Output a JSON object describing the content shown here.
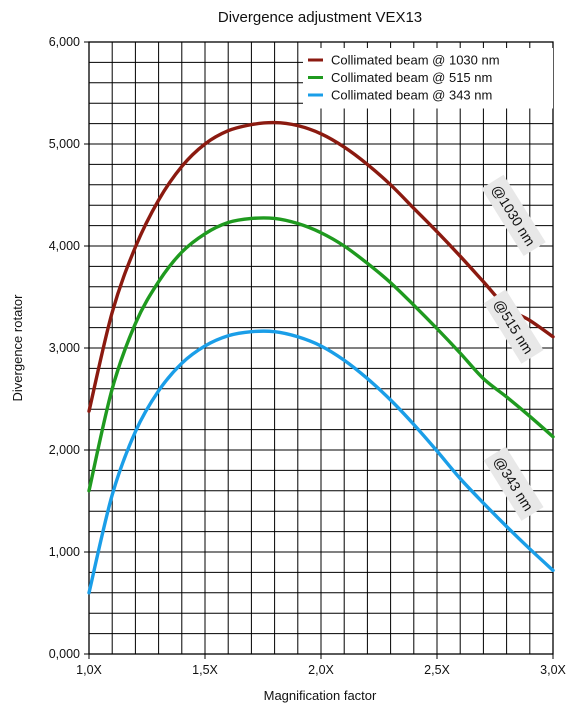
{
  "chart_data": {
    "type": "line",
    "title": "Divergence adjustment VEX13",
    "xlabel": "Magnification factor",
    "ylabel": "Divergence rotator",
    "xlim": [
      1.0,
      3.0
    ],
    "ylim": [
      0,
      6000
    ],
    "x_ticks": [
      {
        "value": 1.0,
        "label": "1,0X"
      },
      {
        "value": 1.5,
        "label": "1,5X"
      },
      {
        "value": 2.0,
        "label": "2,0X"
      },
      {
        "value": 2.5,
        "label": "2,5X"
      },
      {
        "value": 3.0,
        "label": "3,0X"
      }
    ],
    "y_ticks": [
      {
        "value": 0,
        "label": "0,000"
      },
      {
        "value": 1000,
        "label": "1,000"
      },
      {
        "value": 2000,
        "label": "2,000"
      },
      {
        "value": 3000,
        "label": "3,000"
      },
      {
        "value": 4000,
        "label": "4,000"
      },
      {
        "value": 5000,
        "label": "5,000"
      },
      {
        "value": 6000,
        "label": "6,000"
      }
    ],
    "grid": true,
    "legend_position": "top-right",
    "series": [
      {
        "name": "Collimated beam @ 1030 nm",
        "tag": "@1030 nm",
        "color": "#8b1a10",
        "x": [
          1.0,
          1.1,
          1.2,
          1.3,
          1.4,
          1.5,
          1.6,
          1.7,
          1.8,
          1.9,
          2.0,
          2.1,
          2.2,
          2.3,
          2.4,
          2.5,
          2.6,
          2.7,
          2.8,
          2.9,
          3.0
        ],
        "y": [
          2380,
          3350,
          3990,
          4450,
          4780,
          5000,
          5130,
          5190,
          5210,
          5180,
          5100,
          4970,
          4800,
          4600,
          4370,
          4140,
          3900,
          3650,
          3400,
          3270,
          3110
        ]
      },
      {
        "name": "Collimated beam @ 515 nm",
        "tag": "@515 nm",
        "color": "#1f9a1f",
        "x": [
          1.0,
          1.1,
          1.2,
          1.3,
          1.4,
          1.5,
          1.6,
          1.7,
          1.8,
          1.9,
          2.0,
          2.1,
          2.2,
          2.3,
          2.4,
          2.5,
          2.6,
          2.7,
          2.8,
          2.9,
          3.0
        ],
        "y": [
          1600,
          2600,
          3240,
          3650,
          3940,
          4120,
          4230,
          4270,
          4270,
          4220,
          4130,
          4000,
          3830,
          3640,
          3420,
          3190,
          2950,
          2700,
          2520,
          2330,
          2130
        ]
      },
      {
        "name": "Collimated beam @ 343 nm",
        "tag": "@343 nm",
        "color": "#1a9ee8",
        "x": [
          1.0,
          1.1,
          1.2,
          1.3,
          1.4,
          1.5,
          1.6,
          1.7,
          1.8,
          1.9,
          2.0,
          2.1,
          2.2,
          2.3,
          2.4,
          2.5,
          2.6,
          2.7,
          2.8,
          2.9,
          3.0
        ],
        "y": [
          600,
          1560,
          2180,
          2580,
          2850,
          3020,
          3120,
          3160,
          3160,
          3110,
          3020,
          2880,
          2700,
          2490,
          2250,
          1990,
          1720,
          1480,
          1250,
          1030,
          820
        ]
      }
    ]
  }
}
